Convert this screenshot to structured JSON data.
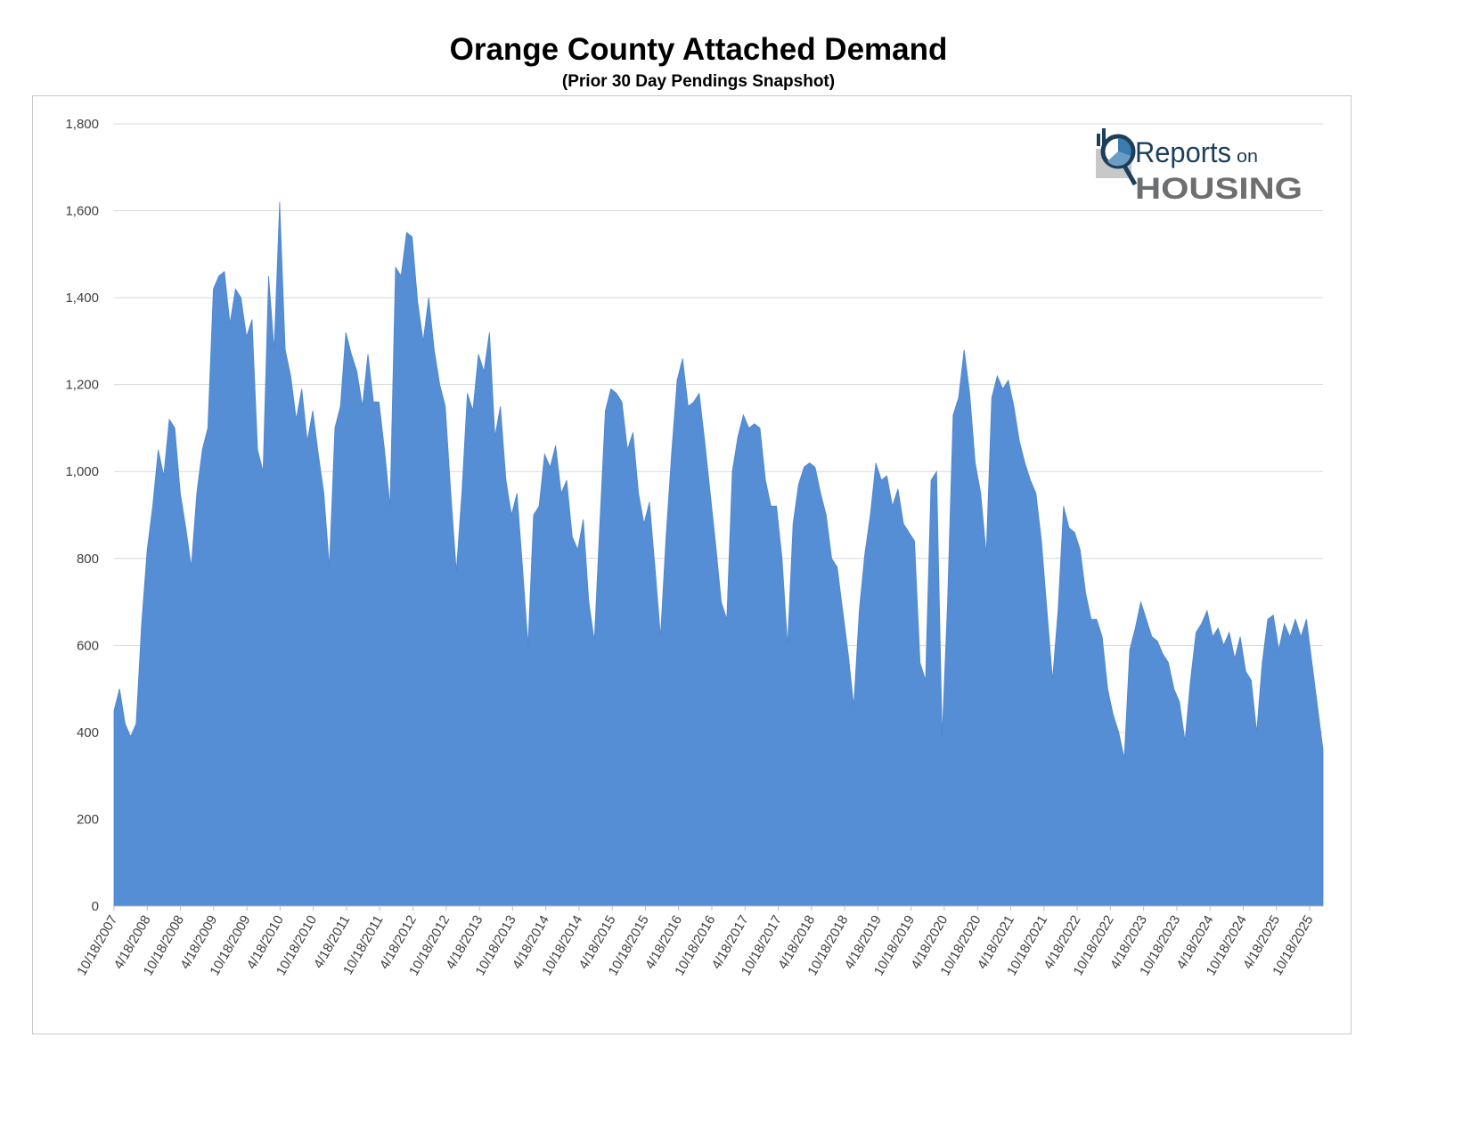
{
  "chart_data": {
    "type": "area",
    "title": "Orange County Attached Demand",
    "subtitle": "(Prior 30 Day Pendings Snapshot)",
    "xlabel": "",
    "ylabel": "",
    "ylim": [
      0,
      1800
    ],
    "yticks": [
      "0",
      "200",
      "400",
      "600",
      "800",
      "1,000",
      "1,200",
      "1,400",
      "1,600",
      "1,800"
    ],
    "ytick_values": [
      0,
      200,
      400,
      600,
      800,
      1000,
      1200,
      1400,
      1600,
      1800
    ],
    "grid": true,
    "legend": "none",
    "color": "#558ed5",
    "x_start": "10/18/2007",
    "interval": "monthly (approx.)",
    "xticks": [
      "10/18/2007",
      "4/18/2008",
      "10/18/2008",
      "4/18/2009",
      "10/18/2009",
      "4/18/2010",
      "10/18/2010",
      "4/18/2011",
      "10/18/2011",
      "4/18/2012",
      "10/18/2012",
      "4/18/2013",
      "10/18/2013",
      "4/18/2014",
      "10/18/2014",
      "4/18/2015",
      "10/18/2015",
      "4/18/2016",
      "10/18/2016",
      "4/18/2017",
      "10/18/2017",
      "4/18/2018",
      "10/18/2018",
      "4/18/2019",
      "10/18/2019",
      "4/18/2020",
      "10/18/2020",
      "4/18/2021",
      "10/18/2021",
      "4/18/2022",
      "10/18/2022",
      "4/18/2023",
      "10/18/2023",
      "4/18/2024",
      "10/18/2024",
      "4/18/2025",
      "10/18/2025"
    ],
    "values": [
      450,
      500,
      420,
      390,
      420,
      650,
      820,
      920,
      1050,
      990,
      1120,
      1100,
      950,
      870,
      780,
      950,
      1050,
      1100,
      1420,
      1450,
      1460,
      1340,
      1420,
      1400,
      1310,
      1350,
      1050,
      1000,
      1450,
      1280,
      1620,
      1280,
      1220,
      1120,
      1190,
      1070,
      1140,
      1040,
      950,
      780,
      1100,
      1150,
      1320,
      1270,
      1230,
      1150,
      1270,
      1160,
      1160,
      1050,
      920,
      1470,
      1450,
      1550,
      1540,
      1390,
      1300,
      1400,
      1280,
      1200,
      1150,
      950,
      770,
      950,
      1180,
      1140,
      1270,
      1230,
      1320,
      1080,
      1150,
      980,
      900,
      950,
      780,
      600,
      900,
      920,
      1040,
      1010,
      1060,
      950,
      980,
      850,
      820,
      890,
      700,
      610,
      880,
      1140,
      1190,
      1180,
      1160,
      1050,
      1090,
      950,
      880,
      930,
      780,
      620,
      850,
      1040,
      1210,
      1260,
      1150,
      1160,
      1180,
      1070,
      950,
      830,
      700,
      660,
      1000,
      1080,
      1130,
      1100,
      1110,
      1100,
      980,
      920,
      920,
      800,
      600,
      880,
      970,
      1010,
      1020,
      1010,
      950,
      900,
      800,
      780,
      680,
      580,
      460,
      680,
      810,
      900,
      1020,
      980,
      990,
      920,
      960,
      880,
      860,
      840,
      560,
      520,
      980,
      1000,
      390,
      700,
      1130,
      1170,
      1280,
      1180,
      1020,
      950,
      810,
      1170,
      1220,
      1190,
      1210,
      1150,
      1070,
      1020,
      980,
      950,
      840,
      680,
      520,
      680,
      920,
      870,
      860,
      820,
      720,
      660,
      660,
      620,
      500,
      440,
      400,
      340,
      590,
      640,
      700,
      660,
      620,
      610,
      580,
      560,
      500,
      470,
      380,
      520,
      630,
      650,
      680,
      620,
      640,
      600,
      630,
      570,
      620,
      540,
      520,
      400,
      560,
      660,
      670,
      590,
      650,
      620,
      660,
      620,
      660,
      560,
      460,
      360
    ]
  },
  "logo": {
    "line1": "Reports",
    "line1b": "on",
    "line2": "HOUSING"
  }
}
